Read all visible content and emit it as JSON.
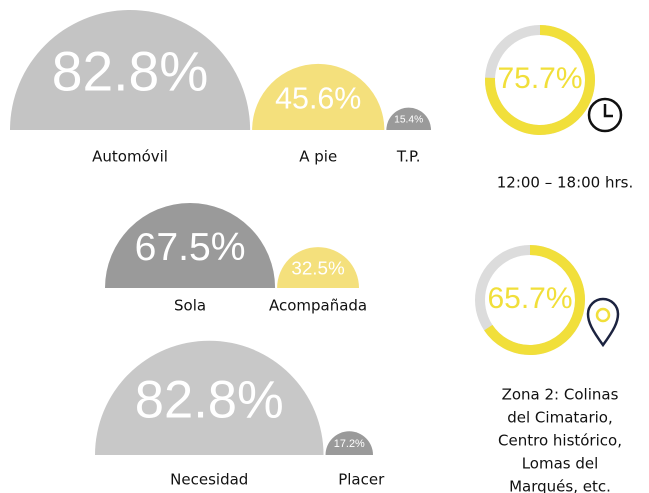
{
  "groups": [
    {
      "categories": [
        "Automóvil",
        "A pie",
        "T.P."
      ],
      "values": [
        82.8,
        45.6,
        15.4
      ],
      "value_labels": [
        "82.8%",
        "45.6%",
        "15.4%"
      ],
      "colors": [
        "#c4c4c4",
        "#f4e07c",
        "#9a9a9a"
      ]
    },
    {
      "categories": [
        "Sola",
        "Acompañada"
      ],
      "values": [
        67.5,
        32.5
      ],
      "value_labels": [
        "67.5%",
        "32.5%"
      ],
      "colors": [
        "#9a9a9a",
        "#f4e07c"
      ]
    },
    {
      "categories": [
        "Necesidad",
        "Placer"
      ],
      "values": [
        82.8,
        17.2
      ],
      "value_labels": [
        "82.8%",
        "17.2%"
      ],
      "colors": [
        "#c8c8c8",
        "#9a9a9a"
      ]
    }
  ],
  "rings": [
    {
      "value": 75.7,
      "value_label": "75.7%",
      "caption": [
        "12:00 – 18:00 hrs."
      ],
      "color": "#f1df3a"
    },
    {
      "value": 65.7,
      "value_label": "65.7%",
      "caption": [
        "Zona 2: Colinas",
        "del Cimatario,",
        "Centro histórico,",
        "Lomas del",
        "Marqués, etc."
      ],
      "color": "#f1df3a"
    }
  ]
}
